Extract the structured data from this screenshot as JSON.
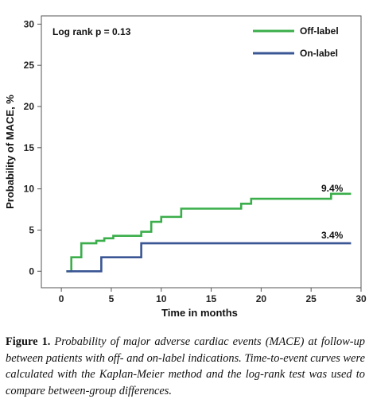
{
  "chart_data": {
    "type": "line",
    "step": true,
    "title": "",
    "xlabel": "Time in months",
    "ylabel": "Probability of MACE, %",
    "xlim": [
      -2,
      30
    ],
    "ylim": [
      -2,
      31
    ],
    "xticks": [
      "0",
      "5",
      "10",
      "15",
      "20",
      "25",
      "30"
    ],
    "yticks": [
      "0",
      "5",
      "10",
      "15",
      "20",
      "25",
      "30"
    ],
    "grid": false,
    "legend_position": "top-right",
    "annotation": "Log rank p = 0.13",
    "series": [
      {
        "name": "Off-label",
        "color": "#3aae4a",
        "end_label": "9.4%",
        "x": [
          0.5,
          1.0,
          2.0,
          3.5,
          4.3,
          5.2,
          7.0,
          8.0,
          9.0,
          10.0,
          12.0,
          18.0,
          19.0,
          27.0,
          29.0
        ],
        "y": [
          0.0,
          1.7,
          3.4,
          3.7,
          4.0,
          4.3,
          4.3,
          4.8,
          6.0,
          6.6,
          7.6,
          8.2,
          8.8,
          9.4,
          9.4
        ]
      },
      {
        "name": "On-label",
        "color": "#3a5694",
        "end_label": "3.4%",
        "x": [
          0.5,
          4.0,
          8.0,
          29.0
        ],
        "y": [
          0.0,
          1.7,
          3.4,
          3.4
        ]
      }
    ]
  },
  "caption": {
    "label": "Figure 1.",
    "text": "Probability of major adverse cardiac events (MACE) at follow-up between patients with off- and on-label indications. Time-to-event curves were calculated with the Kaplan-Meier method and the log-rank test was used to compare between-group differences."
  }
}
